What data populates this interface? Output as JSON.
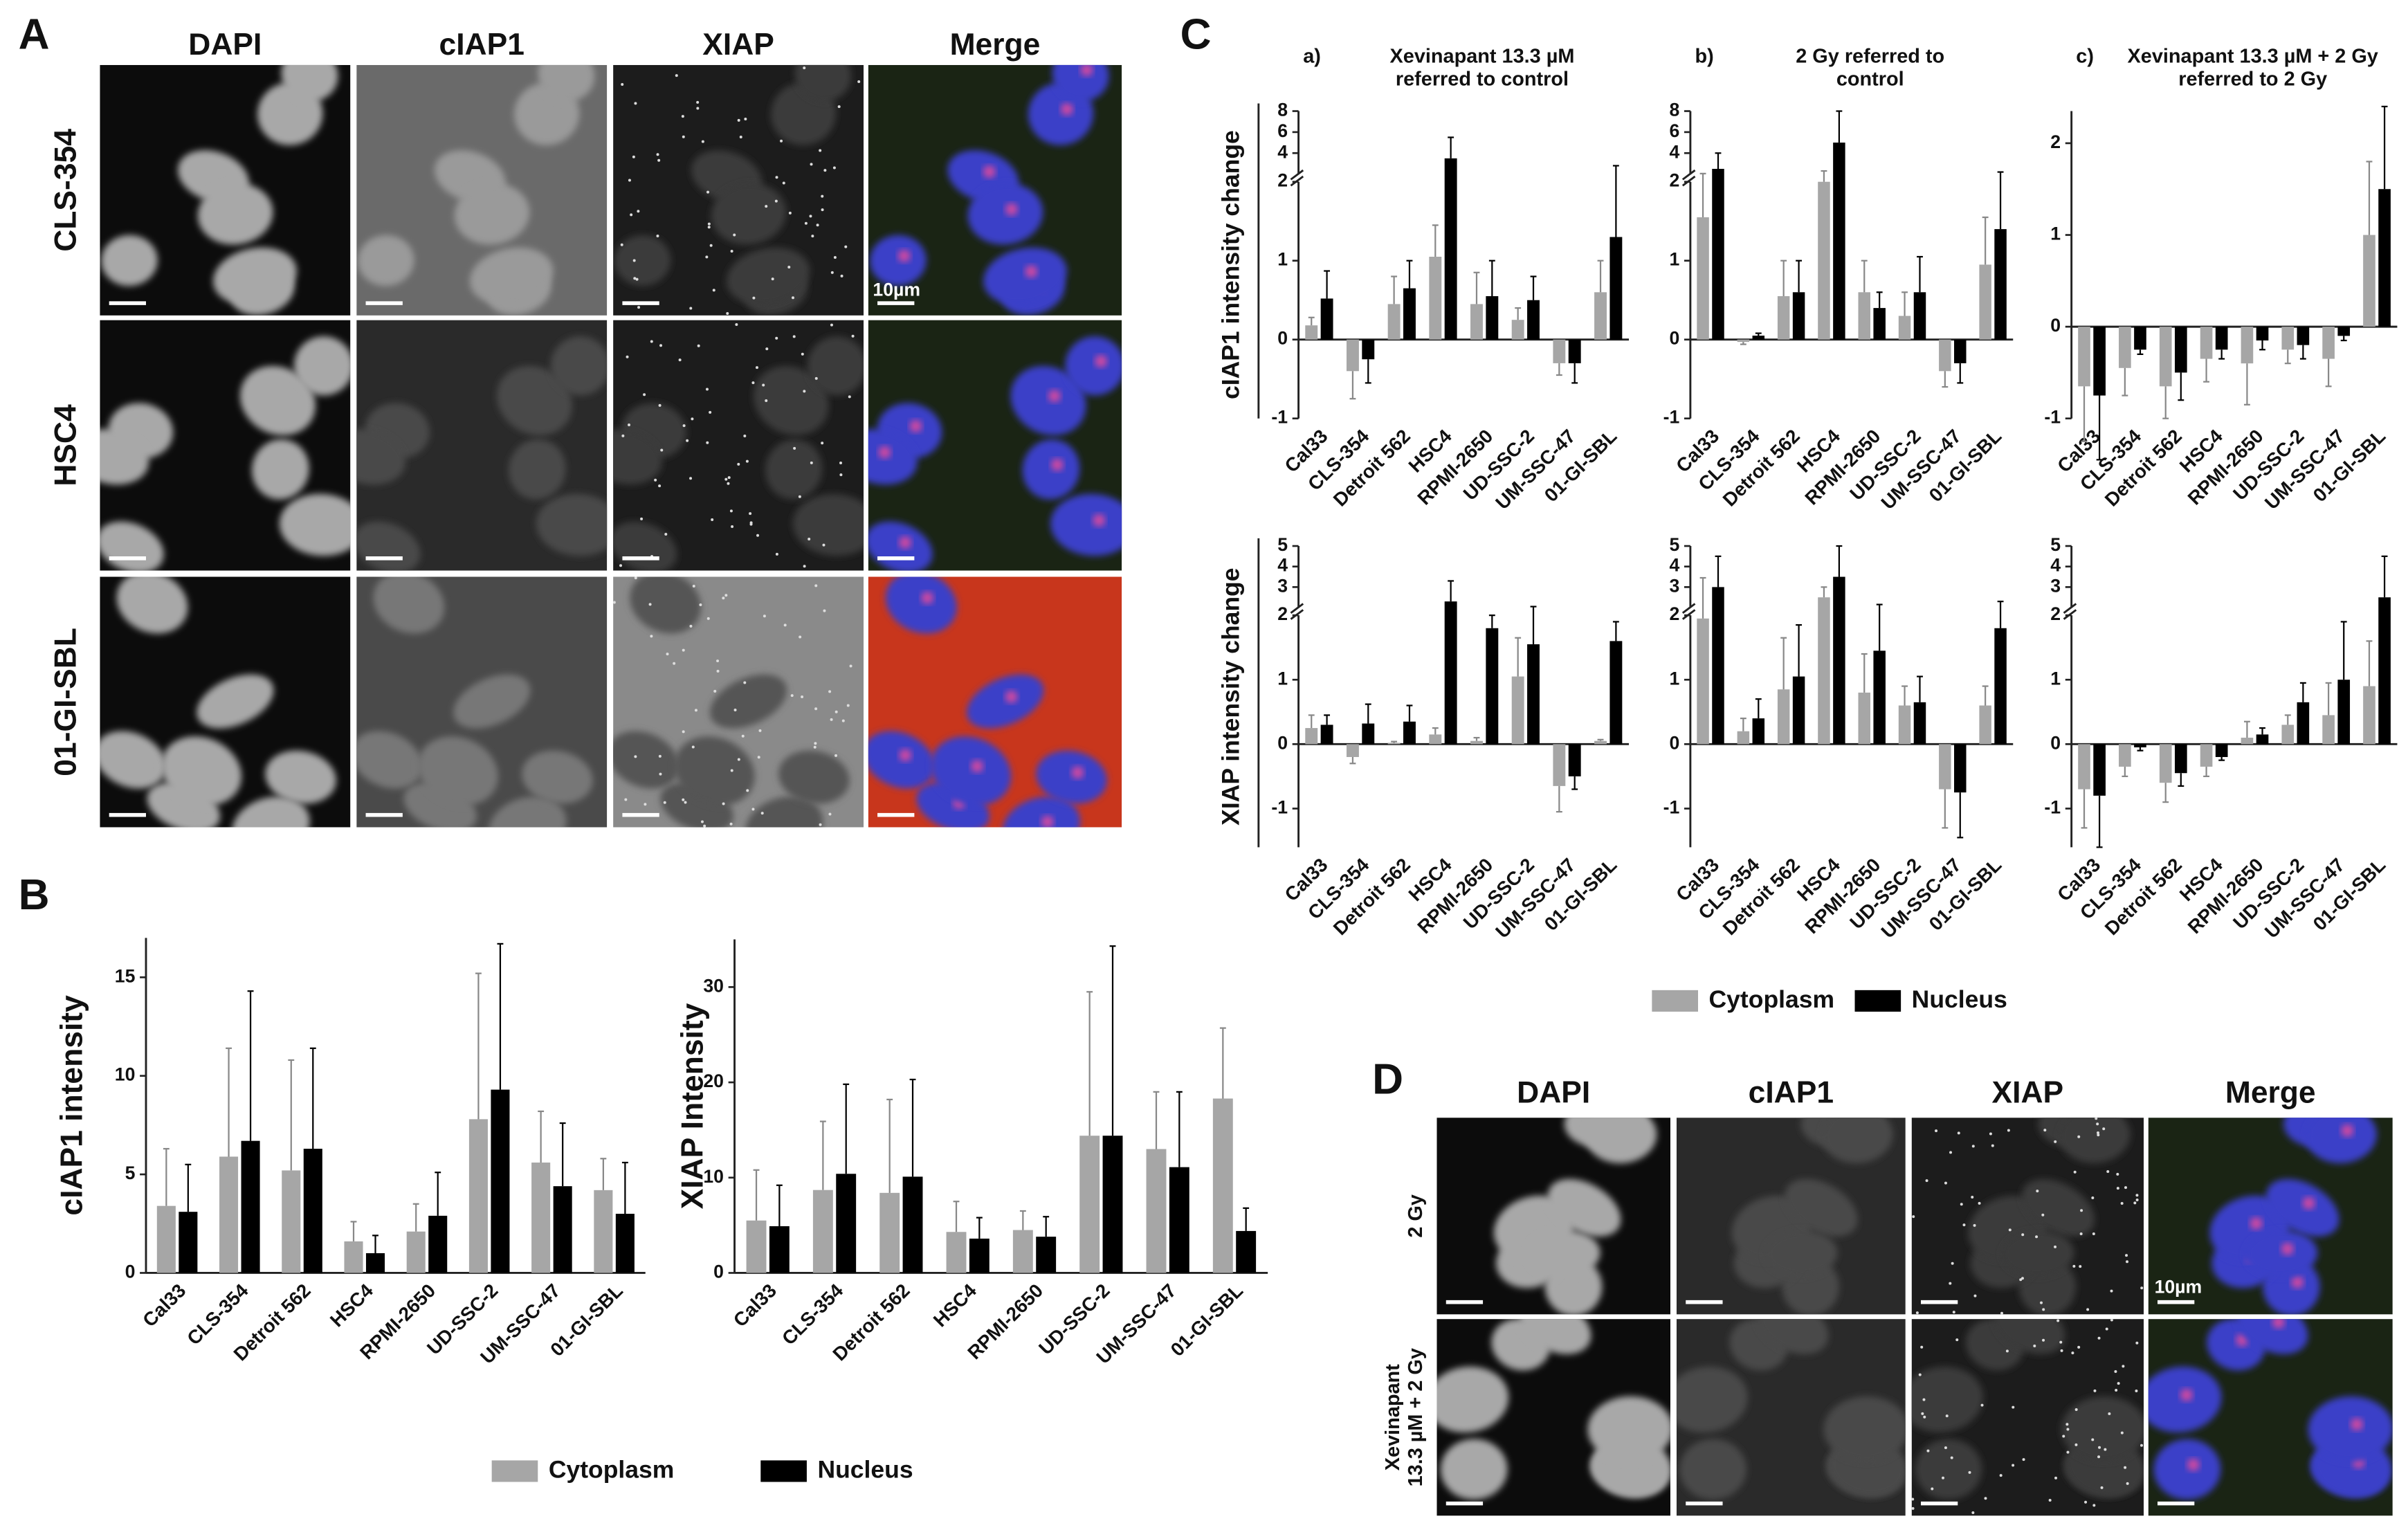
{
  "panels": {
    "A": {
      "letter": "A",
      "channels": [
        "DAPI",
        "cIAP1",
        "XIAP",
        "Merge"
      ],
      "rows": [
        "CLS-354",
        "HSC4",
        "01-GI-SBL"
      ],
      "scale_label": "10µm"
    },
    "B": {
      "letter": "B"
    },
    "C": {
      "letter": "C"
    },
    "D": {
      "letter": "D",
      "channels": [
        "DAPI",
        "cIAP1",
        "XIAP",
        "Merge"
      ],
      "rows": [
        [
          "2 Gy"
        ],
        [
          "Xevinapant",
          "13.3 µM + 2 Gy"
        ]
      ],
      "scale_label": "10µm"
    }
  },
  "chart_data": [
    {
      "type": "bar",
      "ylabel": "cIAP1 intensity",
      "categories": [
        "Cal33",
        "CLS-354",
        "Detroit 562",
        "HSC4",
        "RPMI-2650",
        "UD-SSC-2",
        "UM-SSC-47",
        "01-GI-SBL"
      ],
      "series": [
        {
          "name": "Cytoplasm",
          "color": "#a6a6a6",
          "values": [
            3.4,
            5.9,
            5.2,
            1.6,
            2.1,
            7.8,
            5.6,
            4.2
          ],
          "errors": [
            2.9,
            5.5,
            5.6,
            1.0,
            1.4,
            7.4,
            2.6,
            1.6
          ]
        },
        {
          "name": "Nucleus",
          "color": "#000000",
          "values": [
            3.1,
            6.7,
            6.3,
            1.0,
            2.9,
            9.3,
            4.4,
            3.0
          ],
          "errors": [
            2.4,
            7.6,
            5.1,
            0.9,
            2.2,
            7.4,
            3.2,
            2.6
          ]
        }
      ],
      "ylim": [
        0,
        17
      ],
      "yticks": [
        0,
        5,
        10,
        15
      ]
    },
    {
      "type": "bar",
      "ylabel": "XIAP Intensity",
      "categories": [
        "Cal33",
        "CLS-354",
        "Detroit 562",
        "HSC4",
        "RPMI-2650",
        "UD-SSC-2",
        "UM-SSC-47",
        "01-GI-SBL"
      ],
      "series": [
        {
          "name": "Cytoplasm",
          "color": "#a6a6a6",
          "values": [
            5.5,
            8.7,
            8.4,
            4.3,
            4.5,
            14.4,
            13.0,
            18.3
          ],
          "errors": [
            5.3,
            7.2,
            9.8,
            3.2,
            2.0,
            15.1,
            6.0,
            7.4
          ]
        },
        {
          "name": "Nucleus",
          "color": "#000000",
          "values": [
            4.9,
            10.4,
            10.1,
            3.6,
            3.8,
            14.4,
            11.1,
            4.4
          ],
          "errors": [
            4.3,
            9.4,
            10.2,
            2.2,
            2.1,
            19.9,
            7.9,
            2.4
          ]
        }
      ],
      "ylim": [
        0,
        35
      ],
      "yticks": [
        0,
        10,
        20,
        30
      ]
    },
    {
      "type": "bar",
      "label": "a)",
      "title": [
        "Xevinapant 13.3 µM",
        "referred to control"
      ],
      "ylabel": "cIAP1  intensity change",
      "categories": [
        "Cal33",
        "CLS-354",
        "Detroit 562",
        "HSC4",
        "RPMI-2650",
        "UD-SSC-2",
        "UM-SSC-47",
        "01-GI-SBL"
      ],
      "series": [
        {
          "name": "Cytoplasm",
          "color": "#a6a6a6",
          "values": [
            0.18,
            -0.4,
            0.45,
            1.05,
            0.45,
            0.25,
            -0.3,
            0.6
          ],
          "errors": [
            0.1,
            0.35,
            0.35,
            0.4,
            0.4,
            0.15,
            0.15,
            0.4
          ]
        },
        {
          "name": "Nucleus",
          "color": "#000000",
          "values": [
            0.52,
            -0.25,
            0.65,
            3.5,
            0.55,
            0.5,
            -0.3,
            1.3
          ],
          "errors": [
            0.35,
            0.3,
            0.35,
            2,
            0.45,
            0.3,
            0.25,
            1.5
          ]
        }
      ],
      "ylim": [
        -1,
        8
      ],
      "ybreak": 2,
      "yticks": [
        -1,
        0,
        1,
        2,
        4,
        6,
        8
      ]
    },
    {
      "type": "bar",
      "label": "b)",
      "title": [
        "2 Gy referred to",
        "control"
      ],
      "categories": [
        "Cal33",
        "CLS-354",
        "Detroit 562",
        "HSC4",
        "RPMI-2650",
        "UD-SSC-2",
        "UM-SSC-47",
        "01-GI-SBL"
      ],
      "series": [
        {
          "name": "Cytoplasm",
          "color": "#a6a6a6",
          "values": [
            1.55,
            -0.03,
            0.55,
            2.0,
            0.6,
            0.3,
            -0.4,
            0.95
          ],
          "errors": [
            0.5,
            0.03,
            0.45,
            0.3,
            0.4,
            0.3,
            0.2,
            0.6
          ]
        },
        {
          "name": "Nucleus",
          "color": "#000000",
          "values": [
            2.5,
            0.05,
            0.6,
            5,
            0.4,
            0.6,
            -0.3,
            1.4
          ],
          "errors": [
            1.5,
            0.03,
            0.4,
            3,
            0.2,
            0.45,
            0.25,
            0.8
          ]
        }
      ],
      "ylim": [
        -1,
        8
      ],
      "ybreak": 2,
      "yticks": [
        -1,
        0,
        1,
        2,
        4,
        6,
        8
      ]
    },
    {
      "type": "bar",
      "label": "c)",
      "title": [
        "Xevinapant 13.3 µM + 2 Gy",
        "referred to 2 Gy"
      ],
      "categories": [
        "Cal33",
        "CLS-354",
        "Detroit 562",
        "HSC4",
        "RPMI-2650",
        "UD-SSC-2",
        "UM-SSC-47",
        "01-GI-SBL"
      ],
      "series": [
        {
          "name": "Cytoplasm",
          "color": "#a6a6a6",
          "values": [
            -0.65,
            -0.45,
            -0.65,
            -0.35,
            -0.4,
            -0.25,
            -0.35,
            1.0
          ],
          "errors": [
            0.6,
            0.3,
            0.35,
            0.25,
            0.45,
            0.15,
            0.3,
            0.8
          ]
        },
        {
          "name": "Nucleus",
          "color": "#000000",
          "values": [
            -0.75,
            -0.25,
            -0.5,
            -0.25,
            -0.15,
            -0.2,
            -0.1,
            1.5
          ],
          "errors": [
            0.7,
            0.05,
            0.3,
            0.1,
            0.1,
            0.15,
            0.05,
            0.9
          ]
        }
      ],
      "ylim": [
        -1,
        2.35
      ],
      "yticks": [
        -1,
        0,
        1,
        2
      ]
    },
    {
      "type": "bar",
      "ylabel": "XIAP  intensity change",
      "categories": [
        "Cal33",
        "CLS-354",
        "Detroit 562",
        "HSC4",
        "RPMI-2650",
        "UD-SSC-2",
        "UM-SSC-47",
        "01-GI-SBL"
      ],
      "series": [
        {
          "name": "Cytoplasm",
          "color": "#a6a6a6",
          "values": [
            0.25,
            -0.2,
            0.02,
            0.15,
            0.05,
            1.05,
            -0.65,
            0.05
          ],
          "errors": [
            0.2,
            0.1,
            0.02,
            0.1,
            0.05,
            0.6,
            0.4,
            0.02
          ]
        },
        {
          "name": "Nucleus",
          "color": "#000000",
          "values": [
            0.3,
            0.32,
            0.35,
            2.3,
            1.8,
            1.55,
            -0.5,
            1.6
          ],
          "errors": [
            0.15,
            0.3,
            0.25,
            1,
            0.2,
            0.5,
            0.2,
            0.3
          ]
        }
      ],
      "ylim": [
        -1.6,
        5
      ],
      "ybreak": 2,
      "yticks": [
        -1,
        0,
        1,
        2,
        3,
        4,
        5
      ]
    },
    {
      "type": "bar",
      "categories": [
        "Cal33",
        "CLS-354",
        "Detroit 562",
        "HSC4",
        "RPMI-2650",
        "UD-SSC-2",
        "UM-SSC-47",
        "01-GI-SBL"
      ],
      "series": [
        {
          "name": "Cytoplasm",
          "color": "#a6a6a6",
          "values": [
            1.95,
            0.2,
            0.85,
            2.5,
            0.8,
            0.6,
            -0.7,
            0.6
          ],
          "errors": [
            1.5,
            0.2,
            0.8,
            0.5,
            0.6,
            0.3,
            0.6,
            0.3
          ]
        },
        {
          "name": "Nucleus",
          "color": "#000000",
          "values": [
            3,
            0.4,
            1.05,
            3.5,
            1.45,
            0.65,
            -0.75,
            1.8
          ],
          "errors": [
            1.5,
            0.3,
            0.8,
            1.5,
            0.7,
            0.4,
            0.7,
            0.5
          ]
        }
      ],
      "ylim": [
        -1.6,
        5
      ],
      "ybreak": 2,
      "yticks": [
        -1,
        0,
        1,
        2,
        3,
        4,
        5
      ]
    },
    {
      "type": "bar",
      "categories": [
        "Cal33",
        "CLS-354",
        "Detroit 562",
        "HSC4",
        "RPMI-2650",
        "UD-SSC-2",
        "UM-SSC-47",
        "01-GI-SBL"
      ],
      "series": [
        {
          "name": "Cytoplasm",
          "color": "#a6a6a6",
          "values": [
            -0.7,
            -0.35,
            -0.6,
            -0.35,
            0.1,
            0.3,
            0.45,
            0.9
          ],
          "errors": [
            0.6,
            0.15,
            0.3,
            0.15,
            0.25,
            0.15,
            0.5,
            0.7
          ]
        },
        {
          "name": "Nucleus",
          "color": "#000000",
          "values": [
            -0.8,
            -0.05,
            -0.45,
            -0.2,
            0.15,
            0.65,
            1.0,
            2.5
          ],
          "errors": [
            0.8,
            0.05,
            0.2,
            0.05,
            0.1,
            0.3,
            0.9,
            2
          ]
        }
      ],
      "ylim": [
        -1.6,
        5
      ],
      "ybreak": 2,
      "yticks": [
        -1,
        0,
        1,
        2,
        3,
        4,
        5
      ]
    }
  ]
}
